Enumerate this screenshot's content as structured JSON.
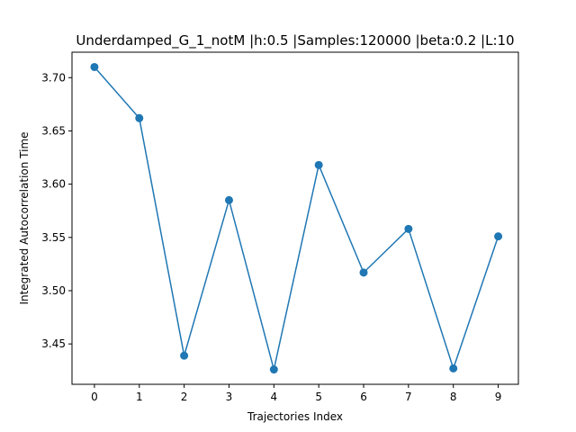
{
  "chart_data": {
    "type": "line",
    "title": "Underdamped_G_1_notM |h:0.5 |Samples:120000 |beta:0.2 |L:10",
    "xlabel": "Trajectories Index",
    "ylabel": "Integrated Autocorrelation Time",
    "x": [
      0,
      1,
      2,
      3,
      4,
      5,
      6,
      7,
      8,
      9
    ],
    "series": [
      {
        "values": [
          3.71,
          3.662,
          3.439,
          3.585,
          3.426,
          3.618,
          3.517,
          3.558,
          3.427,
          3.551
        ],
        "color": "#1f77b4"
      }
    ],
    "xticks": [
      "0",
      "1",
      "2",
      "3",
      "4",
      "5",
      "6",
      "7",
      "8",
      "9"
    ],
    "yticks": [
      "3.45",
      "3.50",
      "3.55",
      "3.60",
      "3.65",
      "3.70"
    ],
    "xlim": [
      -0.5,
      9.45
    ],
    "ylim": [
      3.4121,
      3.7239
    ],
    "grid": false,
    "marker": "circle"
  }
}
